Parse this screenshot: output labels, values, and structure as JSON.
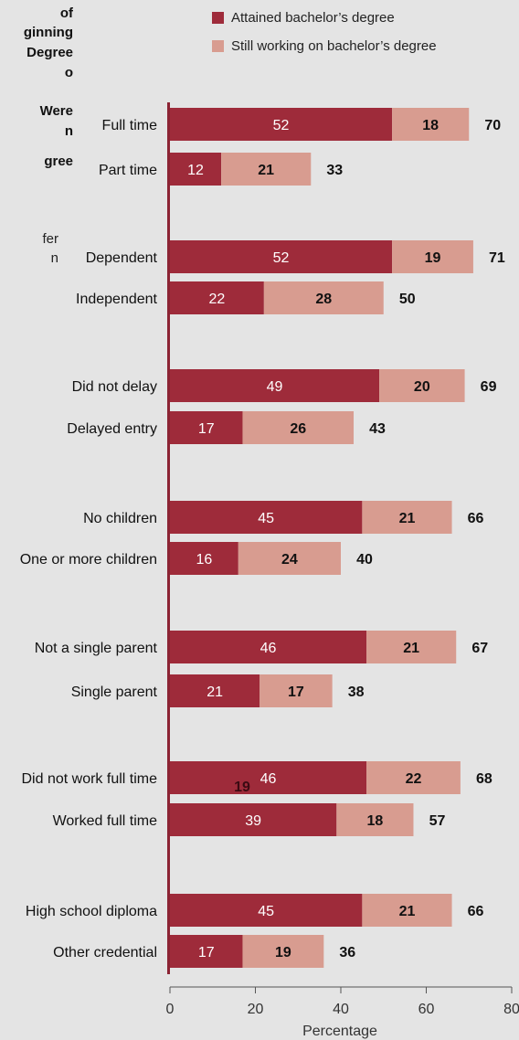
{
  "title_fragment_lines": [
    "of",
    "ginning",
    "Degree",
    "o",
    "Were",
    "n",
    "gree"
  ],
  "note_fragment_lines": [
    "fer",
    "n"
  ],
  "legend": [
    {
      "label": "Attained bachelor’s degree",
      "color": "#9e2b3a"
    },
    {
      "label": "Still working on bachelor’s degree",
      "color": "#d89c90"
    }
  ],
  "stray_label": "19",
  "colors": {
    "attained": "#9e2b3a",
    "still": "#d89c90",
    "axis": "#8b2333",
    "text": "#111111"
  },
  "chart_data": {
    "type": "bar",
    "orientation": "horizontal",
    "stacked": true,
    "categories": [
      "Full time",
      "Part time",
      "Dependent",
      "Independent",
      "Did not delay",
      "Delayed entry",
      "No children",
      "One or more children",
      "Not a single parent",
      "Single parent",
      "Did not work full time",
      "Worked full time",
      "High school diploma",
      "Other credential"
    ],
    "series": [
      {
        "name": "Attained bachelor’s degree",
        "values": [
          52,
          12,
          52,
          22,
          49,
          17,
          45,
          16,
          46,
          21,
          46,
          39,
          45,
          17
        ]
      },
      {
        "name": "Still working on bachelor’s degree",
        "values": [
          18,
          21,
          19,
          28,
          20,
          26,
          21,
          24,
          21,
          17,
          22,
          18,
          21,
          19
        ]
      }
    ],
    "totals": [
      70,
      33,
      71,
      50,
      69,
      43,
      66,
      40,
      67,
      38,
      68,
      57,
      66,
      36
    ],
    "xlabel": "Percentage",
    "xlim": [
      0,
      80
    ],
    "xticks": [
      0,
      20,
      40,
      60,
      80
    ],
    "grid": false,
    "legend_position": "top"
  }
}
